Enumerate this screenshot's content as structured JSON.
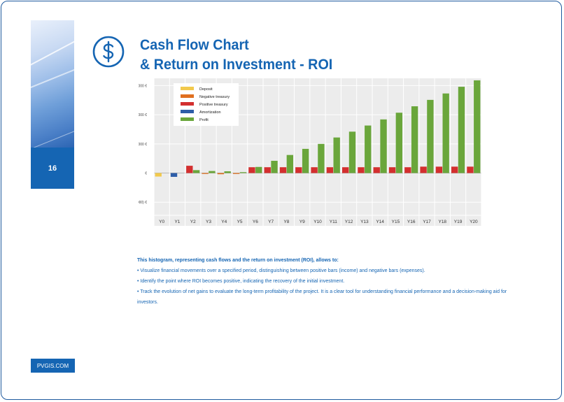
{
  "page": {
    "number": "16",
    "brand": "PVGIS.COM"
  },
  "title": {
    "line1": "Cash Flow Chart",
    "line2": "& Return on Investment - ROI"
  },
  "colors": {
    "accent": "#1565b3",
    "deposit": "#f2c94c",
    "negative": "#e0701f",
    "positive": "#d32f2f",
    "amortization": "#2e5ea8",
    "profit": "#6aa63b"
  },
  "chart_data": {
    "type": "bar",
    "categories": [
      "Y0",
      "Y1",
      "Y2",
      "Y3",
      "Y4",
      "Y5",
      "Y6",
      "Y7",
      "Y8",
      "Y9",
      "Y10",
      "Y11",
      "Y12",
      "Y13",
      "Y14",
      "Y15",
      "Y16",
      "Y17",
      "Y18",
      "Y19",
      "Y20"
    ],
    "yticks": [
      {
        "value": 30000,
        "label": "30,000 €"
      },
      {
        "value": 20000,
        "label": "20,000 €"
      },
      {
        "value": 10000,
        "label": "10,000 €"
      },
      {
        "value": 0,
        "label": "€"
      },
      {
        "value": -10000,
        "label": "(10,000) €"
      }
    ],
    "ylim": [
      -14500,
      32500
    ],
    "legend": [
      "Deposit",
      "Negative treasury",
      "Positive treasury",
      "Amortization",
      "Profit"
    ],
    "legend_position": "top-left",
    "series": [
      {
        "name": "Deposit",
        "color": "#f2c94c",
        "values": [
          -1200,
          0,
          0,
          0,
          0,
          0,
          0,
          0,
          0,
          0,
          0,
          0,
          0,
          0,
          0,
          0,
          0,
          0,
          0,
          0,
          0
        ]
      },
      {
        "name": "Negative treasury",
        "color": "#e0701f",
        "values": [
          0,
          -200,
          0,
          -300,
          -400,
          -300,
          0,
          0,
          0,
          0,
          0,
          0,
          0,
          0,
          0,
          0,
          0,
          0,
          0,
          0,
          0
        ]
      },
      {
        "name": "Positive treasury",
        "color": "#d32f2f",
        "values": [
          0,
          0,
          2500,
          0,
          0,
          0,
          2000,
          2000,
          2000,
          2000,
          2000,
          2000,
          2000,
          2000,
          2000,
          2000,
          2000,
          2200,
          2200,
          2200,
          2200
        ]
      },
      {
        "name": "Amortization",
        "color": "#2e5ea8",
        "values": [
          0,
          -1300,
          0,
          0,
          0,
          0,
          0,
          0,
          0,
          0,
          0,
          0,
          0,
          0,
          0,
          0,
          0,
          0,
          0,
          0,
          0
        ]
      },
      {
        "name": "Profit",
        "color": "#6aa63b",
        "values": [
          0,
          0,
          1000,
          700,
          600,
          300,
          2100,
          4200,
          6200,
          8300,
          10000,
          12200,
          14200,
          16300,
          18400,
          20700,
          22900,
          25100,
          27300,
          29600,
          31800
        ]
      }
    ]
  },
  "description": {
    "lead": "This histogram, representing cash flows and the return on investment (ROI), allows to:",
    "bullet1": "• Visualize financial movements over a specified period, distinguishing between positive bars (income) and negative bars (expenses).",
    "bullet2": "• Identify the point where ROI becomes positive, indicating the recovery of the initial investment.",
    "bullet3": "• Track the evolution of net gains to evaluate the long-term profitability of the project. It is a clear tool for understanding financial performance and a decision-making aid for investors."
  }
}
